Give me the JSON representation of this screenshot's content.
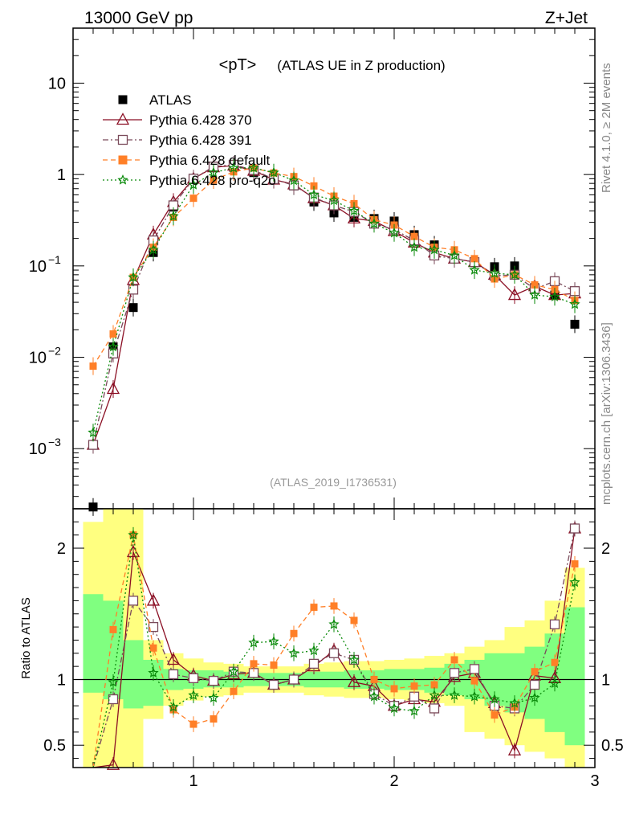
{
  "header": {
    "left": "13000 GeV pp",
    "right": "Z+Jet"
  },
  "plot": {
    "title_main": "<pT>",
    "title_sub": "(ATLAS UE in Z production)",
    "analysis_id": "(ATLAS_2019_I1736531)",
    "side_label_top": "Rivet 4.1.0, ≥ 2M events",
    "side_label_bottom": "mcplots.cern.ch [arXiv:1306.3436]",
    "ratio_ylabel": "Ratio to ATLAS"
  },
  "chart_data": {
    "type": "scatter",
    "x": [
      0.5,
      0.6,
      0.7,
      0.8,
      0.9,
      1.0,
      1.1,
      1.2,
      1.3,
      1.4,
      1.5,
      1.6,
      1.7,
      1.8,
      1.9,
      2.0,
      2.1,
      2.2,
      2.3,
      2.4,
      2.5,
      2.6,
      2.7,
      2.8,
      2.9
    ],
    "xlim": [
      0.4,
      3.0
    ],
    "main_ylim": [
      0.00022,
      40
    ],
    "main_yscale": "log",
    "ratio_ylim": [
      0.33,
      2.3
    ],
    "xticks": [
      1,
      2,
      3
    ],
    "xtick_labels": [
      "1",
      "2",
      "3"
    ],
    "main_yticks": [
      0.001,
      0.01,
      0.1,
      1,
      10
    ],
    "main_ytick_labels": [
      [
        "10",
        "−3"
      ],
      [
        "10",
        "−2"
      ],
      [
        "10",
        "−1"
      ],
      [
        "1",
        ""
      ],
      [
        "10",
        ""
      ]
    ],
    "ratio_yticks": [
      0.5,
      1,
      2
    ],
    "ratio_ytick_labels": [
      "0.5",
      "1",
      "2"
    ],
    "legend_position": "top-left",
    "series": [
      {
        "name": "ATLAS",
        "color": "#000000",
        "marker": "square-filled",
        "line": "none",
        "values": [
          0.00023,
          0.013,
          0.035,
          0.14,
          0.44,
          0.88,
          1.22,
          1.2,
          1.05,
          0.92,
          0.75,
          0.5,
          0.38,
          0.34,
          0.33,
          0.31,
          0.22,
          0.17,
          0.12,
          0.11,
          0.098,
          0.1,
          0.058,
          0.048,
          0.023
        ],
        "ratio": null
      },
      {
        "name": "Pythia 6.428 370",
        "color": "#8b0f24",
        "marker": "triangle-open",
        "line": "solid",
        "values": [
          0.0011,
          0.0045,
          0.07,
          0.22,
          0.5,
          0.9,
          1.2,
          1.25,
          1.1,
          0.88,
          0.78,
          0.55,
          0.46,
          0.33,
          0.31,
          0.24,
          0.18,
          0.14,
          0.12,
          0.11,
          0.08,
          0.048,
          0.06,
          0.048,
          0.05
        ],
        "ratio": [
          0.3,
          0.35,
          1.97,
          1.6,
          1.15,
          1.03,
          0.99,
          1.04,
          1.05,
          0.96,
          1.0,
          1.1,
          1.22,
          0.98,
          0.95,
          0.8,
          0.85,
          0.83,
          1.02,
          1.05,
          0.82,
          0.46,
          1.03,
          1.01,
          2.15
        ]
      },
      {
        "name": "Pythia 6.428 391",
        "color": "#7a4a5a",
        "marker": "square-open",
        "line": "dashdot",
        "values": [
          0.0011,
          0.011,
          0.055,
          0.19,
          0.46,
          0.9,
          1.22,
          1.28,
          1.12,
          0.89,
          0.76,
          0.56,
          0.46,
          0.39,
          0.29,
          0.25,
          0.19,
          0.13,
          0.12,
          0.11,
          0.078,
          0.08,
          0.056,
          0.068,
          0.053
        ],
        "ratio": [
          0.3,
          0.85,
          1.6,
          1.4,
          1.04,
          1.01,
          0.99,
          1.06,
          1.05,
          0.96,
          1.0,
          1.12,
          1.2,
          1.15,
          0.89,
          0.8,
          0.87,
          0.78,
          1.05,
          1.08,
          0.8,
          0.78,
          0.96,
          1.42,
          2.15
        ]
      },
      {
        "name": "Pythia 6.428 default",
        "color": "#ff7f27",
        "marker": "square-filled",
        "line": "dashed",
        "values": [
          0.008,
          0.018,
          0.075,
          0.16,
          0.34,
          0.55,
          0.87,
          1.07,
          1.18,
          1.04,
          0.95,
          0.75,
          0.58,
          0.48,
          0.32,
          0.28,
          0.21,
          0.16,
          0.15,
          0.12,
          0.072,
          0.08,
          0.062,
          0.055,
          0.042
        ],
        "ratio": [
          0.3,
          1.38,
          2.1,
          1.24,
          0.77,
          0.66,
          0.7,
          0.91,
          1.12,
          1.11,
          1.35,
          1.55,
          1.56,
          1.45,
          1.0,
          0.93,
          0.95,
          0.96,
          1.15,
          0.99,
          0.73,
          0.79,
          1.06,
          1.13,
          1.88
        ]
      },
      {
        "name": "Pythia 6.428 pro-q2o",
        "color": "#0a8a0a",
        "marker": "star-open",
        "line": "dotted",
        "values": [
          0.0015,
          0.013,
          0.075,
          0.15,
          0.35,
          0.77,
          1.05,
          1.18,
          1.18,
          1.05,
          0.86,
          0.6,
          0.52,
          0.4,
          0.29,
          0.23,
          0.16,
          0.15,
          0.13,
          0.09,
          0.083,
          0.08,
          0.048,
          0.046,
          0.038
        ],
        "ratio": [
          0.3,
          0.98,
          2.1,
          1.05,
          0.79,
          0.88,
          0.86,
          1.06,
          1.28,
          1.29,
          1.2,
          1.22,
          1.42,
          1.15,
          0.87,
          0.78,
          0.76,
          0.88,
          0.88,
          0.87,
          0.85,
          0.82,
          0.86,
          0.97,
          1.74
        ]
      }
    ],
    "ratio_bands": {
      "yellow": [
        [
          0.4,
          0.9,
          2.2
        ],
        [
          0.42,
          0.85,
          2.3
        ],
        [
          0.25,
          0.78,
          2.3
        ],
        [
          0.2,
          0.8,
          1.3
        ],
        [
          0.5,
          0.85,
          1.2
        ],
        [
          0.86,
          0.88,
          1.16
        ],
        [
          0.86,
          0.89,
          1.13
        ],
        [
          0.86,
          0.9,
          1.12
        ],
        [
          0.86,
          0.9,
          1.1
        ],
        [
          0.86,
          0.92,
          1.1
        ],
        [
          0.86,
          0.92,
          1.1
        ],
        [
          0.86,
          0.91,
          1.12
        ],
        [
          0.86,
          0.89,
          1.13
        ],
        [
          0.86,
          0.88,
          1.14
        ],
        [
          0.86,
          0.88,
          1.14
        ],
        [
          0.86,
          0.88,
          1.15
        ],
        [
          0.85,
          0.87,
          1.16
        ],
        [
          0.83,
          0.86,
          1.18
        ],
        [
          0.82,
          0.84,
          1.2
        ],
        [
          0.78,
          0.6,
          1.25
        ],
        [
          0.78,
          0.55,
          1.3
        ],
        [
          0.78,
          0.5,
          1.4
        ],
        [
          0.78,
          0.45,
          1.45
        ],
        [
          0.6,
          0.45,
          1.6
        ],
        [
          0.42,
          0.38,
          1.85
        ]
      ],
      "green": [
        [
          1.65,
          0.9,
          1.65
        ],
        [
          1.6,
          0.85,
          1.6
        ],
        [
          1.3,
          0.78,
          1.3
        ],
        [
          1.15,
          0.8,
          1.15
        ],
        [
          1.08,
          0.92,
          1.08
        ],
        [
          1.07,
          0.93,
          1.07
        ],
        [
          1.07,
          0.94,
          1.07
        ],
        [
          1.06,
          0.94,
          1.06
        ],
        [
          1.05,
          0.95,
          1.05
        ],
        [
          1.05,
          0.95,
          1.05
        ],
        [
          1.05,
          0.95,
          1.05
        ],
        [
          1.06,
          0.94,
          1.06
        ],
        [
          1.06,
          0.94,
          1.06
        ],
        [
          1.07,
          0.93,
          1.07
        ],
        [
          1.07,
          0.93,
          1.07
        ],
        [
          1.08,
          0.92,
          1.08
        ],
        [
          1.08,
          0.92,
          1.08
        ],
        [
          1.09,
          0.9,
          1.09
        ],
        [
          1.12,
          0.88,
          1.12
        ],
        [
          1.15,
          0.85,
          1.15
        ],
        [
          1.2,
          0.8,
          1.2
        ],
        [
          1.2,
          0.75,
          1.2
        ],
        [
          1.25,
          0.7,
          1.25
        ],
        [
          1.35,
          0.6,
          1.35
        ],
        [
          1.55,
          0.5,
          1.55
        ]
      ]
    }
  }
}
